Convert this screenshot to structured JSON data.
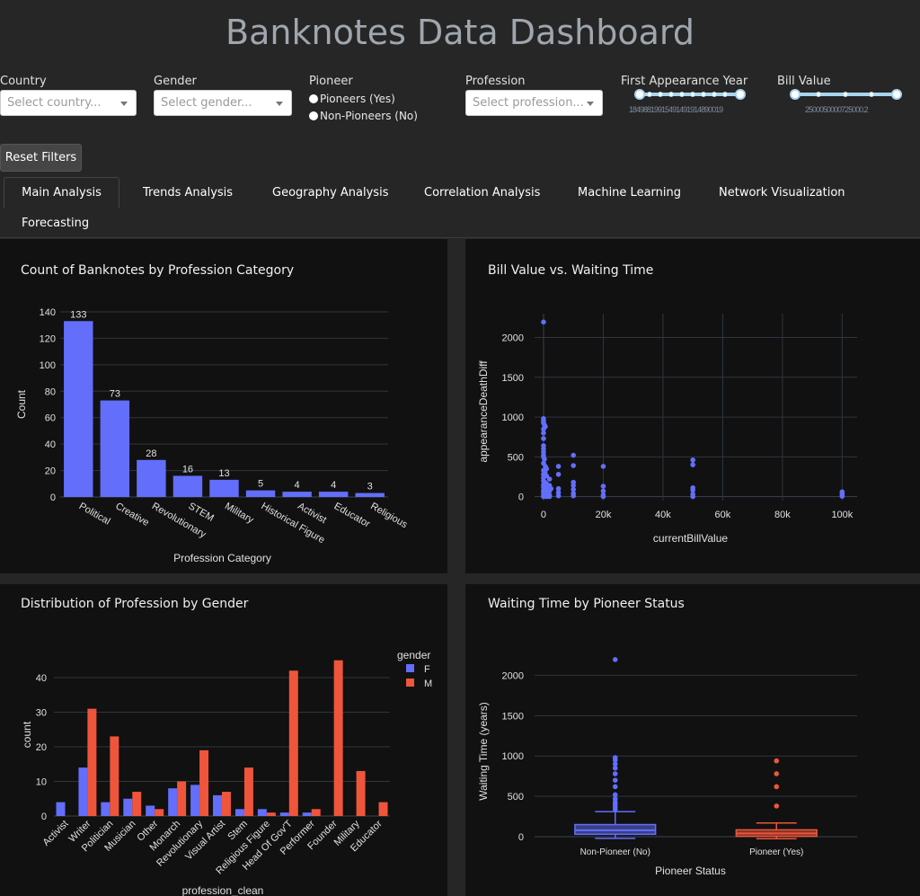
{
  "app": {
    "title": "Banknotes Data Dashboard"
  },
  "filters": {
    "country": {
      "label": "Country",
      "placeholder": "Select country..."
    },
    "gender": {
      "label": "Gender",
      "placeholder": "Select gender..."
    },
    "pioneer": {
      "label": "Pioneer",
      "options": [
        "Pioneers (Yes)",
        "Non-Pioneers (No)"
      ]
    },
    "profession": {
      "label": "Profession",
      "placeholder": "Select profession..."
    },
    "year": {
      "label": "First Appearance Year",
      "marks_text": "18498819915491491914890019"
    },
    "bill": {
      "label": "Bill Value",
      "marks_text": "2500050000725000.2"
    },
    "reset_label": "Reset Filters"
  },
  "tabs": [
    "Main Analysis",
    "Trends Analysis",
    "Geography Analysis",
    "Correlation Analysis",
    "Machine Learning",
    "Network Visualization",
    "Forecasting"
  ],
  "active_tab": "Main Analysis",
  "colors": {
    "blue": "#636efa",
    "red": "#ef553b",
    "panel": "#111111",
    "page": "#262626",
    "grid": "#2f3540"
  },
  "panels": {
    "profession_count": {
      "title": "Count of Banknotes by Profession Category"
    },
    "bill_vs_wait": {
      "title": "Bill Value vs. Waiting Time"
    },
    "profession_gender": {
      "title": "Distribution of Profession by Gender"
    },
    "pioneer_wait": {
      "title": "Waiting Time by Pioneer Status"
    }
  },
  "chart_data": [
    {
      "type": "bar",
      "title": "Count of Banknotes by Profession Category",
      "xlabel": "Profession Category",
      "ylabel": "Count",
      "categories": [
        "Political",
        "Creative",
        "Revolutionary",
        "STEM",
        "Military",
        "Historical Figure",
        "Activist",
        "Educator",
        "Religious"
      ],
      "values": [
        133,
        73,
        28,
        16,
        13,
        5,
        4,
        4,
        3
      ],
      "ylim": [
        0,
        140
      ],
      "yticks": [
        0,
        20,
        40,
        60,
        80,
        100,
        120,
        140
      ],
      "data_labels": true
    },
    {
      "type": "scatter",
      "title": "Bill Value vs. Waiting Time",
      "xlabel": "currentBillValue",
      "ylabel": "appearanceDeathDiff",
      "xlim": [
        -3000,
        105000
      ],
      "ylim": [
        -50,
        2300
      ],
      "xticks": [
        0,
        20000,
        40000,
        60000,
        80000,
        100000
      ],
      "xtick_labels": [
        "0",
        "20k",
        "40k",
        "60k",
        "80k",
        "100k"
      ],
      "yticks": [
        0,
        500,
        1000,
        1500,
        2000
      ],
      "points": [
        [
          0,
          2195
        ],
        [
          0,
          980
        ],
        [
          0,
          950
        ],
        [
          0,
          930
        ],
        [
          300,
          900
        ],
        [
          600,
          880
        ],
        [
          0,
          850
        ],
        [
          0,
          800
        ],
        [
          0,
          730
        ],
        [
          0,
          640
        ],
        [
          0,
          600
        ],
        [
          0,
          560
        ],
        [
          0,
          520
        ],
        [
          0,
          500
        ],
        [
          300,
          470
        ],
        [
          0,
          420
        ],
        [
          600,
          380
        ],
        [
          1000,
          350
        ],
        [
          0,
          330
        ],
        [
          500,
          300
        ],
        [
          0,
          280
        ],
        [
          1000,
          260
        ],
        [
          0,
          240
        ],
        [
          2000,
          220
        ],
        [
          0,
          200
        ],
        [
          500,
          180
        ],
        [
          1000,
          160
        ],
        [
          0,
          150
        ],
        [
          2000,
          140
        ],
        [
          0,
          120
        ],
        [
          500,
          100
        ],
        [
          1000,
          90
        ],
        [
          0,
          80
        ],
        [
          2000,
          70
        ],
        [
          0,
          60
        ],
        [
          500,
          50
        ],
        [
          1000,
          40
        ],
        [
          0,
          30
        ],
        [
          2000,
          20
        ],
        [
          0,
          10
        ],
        [
          500,
          5
        ],
        [
          1000,
          0
        ],
        [
          0,
          0
        ],
        [
          2000,
          0
        ],
        [
          1500,
          120
        ],
        [
          1500,
          60
        ],
        [
          1500,
          20
        ],
        [
          2500,
          100
        ],
        [
          5000,
          380
        ],
        [
          5000,
          280
        ],
        [
          5000,
          100
        ],
        [
          5000,
          50
        ],
        [
          5000,
          10
        ],
        [
          10000,
          520
        ],
        [
          10000,
          390
        ],
        [
          10000,
          180
        ],
        [
          10000,
          140
        ],
        [
          10000,
          90
        ],
        [
          10000,
          40
        ],
        [
          10000,
          10
        ],
        [
          20000,
          380
        ],
        [
          20000,
          130
        ],
        [
          20000,
          70
        ],
        [
          20000,
          20
        ],
        [
          20000,
          0
        ],
        [
          50000,
          460
        ],
        [
          50000,
          400
        ],
        [
          50000,
          110
        ],
        [
          50000,
          80
        ],
        [
          50000,
          30
        ],
        [
          50000,
          0
        ],
        [
          100000,
          60
        ],
        [
          100000,
          40
        ],
        [
          100000,
          20
        ],
        [
          100000,
          5
        ]
      ]
    },
    {
      "type": "bar",
      "title": "Distribution of Profession by Gender",
      "xlabel": "profession_clean",
      "ylabel": "count",
      "legend_title": "gender",
      "legend_placement": "top-right",
      "categories": [
        "Activist",
        "Writer",
        "Politician",
        "Musician",
        "Other",
        "Monarch",
        "Revolutionary",
        "Visual Artist",
        "Stem",
        "Religious Figure",
        "Head Of Gov'T",
        "Performer",
        "Founder",
        "Military",
        "Educator"
      ],
      "series": [
        {
          "name": "F",
          "values": [
            4,
            14,
            4,
            5,
            3,
            8,
            9,
            6,
            2,
            2,
            1,
            1,
            0,
            0,
            0
          ]
        },
        {
          "name": "M",
          "values": [
            0,
            31,
            23,
            7,
            2,
            10,
            19,
            7,
            14,
            1,
            42,
            2,
            45,
            13,
            4
          ]
        }
      ],
      "ylim": [
        0,
        47
      ],
      "yticks": [
        0,
        10,
        20,
        30,
        40
      ]
    },
    {
      "type": "box",
      "title": "Waiting Time by Pioneer Status",
      "xlabel": "Pioneer Status",
      "ylabel": "Waiting Time (years)",
      "categories": [
        "Non-Pioneer (No)",
        "Pioneer (Yes)"
      ],
      "ylim": [
        -100,
        2350
      ],
      "yticks": [
        0,
        500,
        1000,
        1500,
        2000
      ],
      "boxes": [
        {
          "name": "Non-Pioneer (No)",
          "q1": 30,
          "median": 80,
          "q3": 150,
          "whisker_low": -20,
          "whisker_high": 310,
          "outliers": [
            2195,
            980,
            950,
            900,
            850,
            780,
            700,
            620,
            520,
            470,
            430,
            400,
            370,
            340
          ]
        },
        {
          "name": "Pioneer (Yes)",
          "q1": 5,
          "median": 40,
          "q3": 85,
          "whisker_low": -25,
          "whisker_high": 170,
          "outliers": [
            940,
            780,
            620,
            380
          ]
        }
      ]
    }
  ]
}
